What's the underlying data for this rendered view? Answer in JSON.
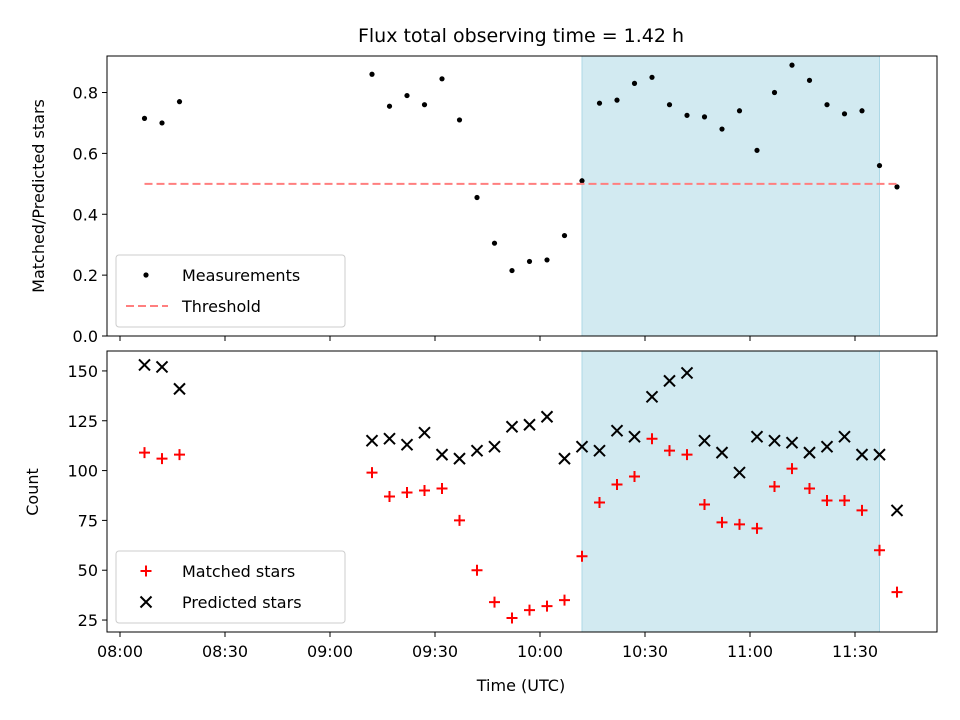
{
  "chart_data": {
    "type": "scatter",
    "title": "Flux total observing time = 1.42 h",
    "x_tick_labels": [
      "08:00",
      "08:30",
      "09:00",
      "09:30",
      "10:00",
      "10:30",
      "11:00",
      "11:30"
    ],
    "xlabel": "Time (UTC)",
    "shaded_span": [
      "10:12",
      "11:37"
    ],
    "panels": [
      {
        "name": "ratio",
        "ylabel": "Matched/Predicted stars",
        "ylim": [
          0,
          0.92
        ],
        "yticks": [
          "0.0",
          "0.2",
          "0.4",
          "0.6",
          "0.8"
        ],
        "legend": {
          "placement": "lower-left",
          "entries": [
            "Measurements",
            "Threshold"
          ]
        },
        "series": [
          {
            "name": "Measurements",
            "marker": "dot",
            "color": "#000000",
            "x": [
              "08:07",
              "08:12",
              "08:17",
              "09:12",
              "09:17",
              "09:22",
              "09:27",
              "09:32",
              "09:37",
              "09:42",
              "09:47",
              "09:52",
              "09:57",
              "10:02",
              "10:07",
              "10:12",
              "10:17",
              "10:22",
              "10:27",
              "10:32",
              "10:37",
              "10:42",
              "10:47",
              "10:52",
              "10:57",
              "11:02",
              "11:07",
              "11:12",
              "11:17",
              "11:22",
              "11:27",
              "11:32",
              "11:37",
              "11:42"
            ],
            "y": [
              0.715,
              0.7,
              0.77,
              0.86,
              0.755,
              0.79,
              0.76,
              0.845,
              0.71,
              0.455,
              0.305,
              0.215,
              0.245,
              0.25,
              0.33,
              0.51,
              0.765,
              0.775,
              0.83,
              0.85,
              0.76,
              0.725,
              0.72,
              0.68,
              0.74,
              0.61,
              0.8,
              0.89,
              0.84,
              0.76,
              0.73,
              0.74,
              0.56,
              0.49
            ]
          },
          {
            "name": "Threshold",
            "marker": "dashed-line",
            "color": "#ff7f7f",
            "x": [
              "08:07",
              "11:42"
            ],
            "y": [
              0.5,
              0.5
            ]
          }
        ]
      },
      {
        "name": "counts",
        "ylabel": "Count",
        "ylim": [
          19,
          160
        ],
        "yticks": [
          "25",
          "50",
          "75",
          "100",
          "125",
          "150"
        ],
        "legend": {
          "placement": "lower-left",
          "entries": [
            "Matched stars",
            "Predicted stars"
          ]
        },
        "series": [
          {
            "name": "Matched stars",
            "marker": "plus",
            "color": "#ff0000",
            "x": [
              "08:07",
              "08:12",
              "08:17",
              "09:12",
              "09:17",
              "09:22",
              "09:27",
              "09:32",
              "09:37",
              "09:42",
              "09:47",
              "09:52",
              "09:57",
              "10:02",
              "10:07",
              "10:12",
              "10:17",
              "10:22",
              "10:27",
              "10:32",
              "10:37",
              "10:42",
              "10:47",
              "10:52",
              "10:57",
              "11:02",
              "11:07",
              "11:12",
              "11:17",
              "11:22",
              "11:27",
              "11:32",
              "11:37",
              "11:42"
            ],
            "y": [
              109,
              106,
              108,
              99,
              87,
              89,
              90,
              91,
              75,
              50,
              34,
              26,
              30,
              32,
              35,
              57,
              84,
              93,
              97,
              116,
              110,
              108,
              83,
              74,
              73,
              71,
              92,
              101,
              91,
              85,
              85,
              80,
              60,
              39
            ]
          },
          {
            "name": "Predicted stars",
            "marker": "x",
            "color": "#000000",
            "x": [
              "08:07",
              "08:12",
              "08:17",
              "09:12",
              "09:17",
              "09:22",
              "09:27",
              "09:32",
              "09:37",
              "09:42",
              "09:47",
              "09:52",
              "09:57",
              "10:02",
              "10:07",
              "10:12",
              "10:17",
              "10:22",
              "10:27",
              "10:32",
              "10:37",
              "10:42",
              "10:47",
              "10:52",
              "10:57",
              "11:02",
              "11:07",
              "11:12",
              "11:17",
              "11:22",
              "11:27",
              "11:32",
              "11:37",
              "11:42"
            ],
            "y": [
              153,
              152,
              141,
              115,
              116,
              113,
              119,
              108,
              106,
              110,
              112,
              122,
              123,
              127,
              106,
              112,
              110,
              120,
              117,
              137,
              145,
              149,
              115,
              109,
              99,
              117,
              115,
              114,
              109,
              112,
              117,
              108,
              108,
              80
            ]
          }
        ]
      }
    ],
    "colors": {
      "shade": "#add8e6",
      "threshold": "#ff7f7f",
      "matched": "#ff0000",
      "predicted": "#000000"
    }
  }
}
